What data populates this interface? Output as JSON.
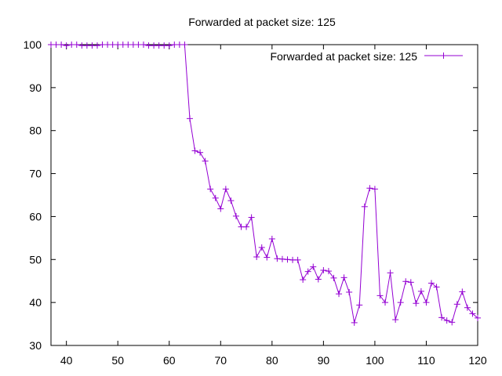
{
  "chart_data": {
    "type": "line",
    "title": "Forwarded at packet size: 125",
    "xlabel": "",
    "ylabel": "",
    "xlim": [
      37,
      120
    ],
    "ylim": [
      30,
      100
    ],
    "xticks": [
      40,
      50,
      60,
      70,
      80,
      90,
      100,
      110,
      120
    ],
    "yticks": [
      30,
      40,
      50,
      60,
      70,
      80,
      90,
      100
    ],
    "grid": false,
    "legend_position": "top-right",
    "series": [
      {
        "name": "Forwarded at packet size: 125",
        "color": "#9400d3",
        "marker": "plus",
        "x": [
          37,
          38,
          39,
          40,
          41,
          42,
          43,
          44,
          45,
          46,
          47,
          48,
          49,
          50,
          51,
          52,
          53,
          54,
          55,
          56,
          57,
          58,
          59,
          60,
          61,
          62,
          63,
          64,
          65,
          66,
          67,
          68,
          69,
          70,
          71,
          72,
          73,
          74,
          75,
          76,
          77,
          78,
          79,
          80,
          81,
          82,
          83,
          84,
          85,
          86,
          87,
          88,
          89,
          90,
          91,
          92,
          93,
          94,
          95,
          96,
          97,
          98,
          99,
          100,
          101,
          102,
          103,
          104,
          105,
          106,
          107,
          108,
          109,
          110,
          111,
          112,
          113,
          114,
          115,
          116,
          117,
          118,
          119,
          120
        ],
        "y": [
          100,
          100,
          100,
          99.8,
          100,
          100,
          99.8,
          99.8,
          99.8,
          99.8,
          100,
          100,
          100,
          100,
          100,
          100,
          100,
          100,
          100,
          99.8,
          99.8,
          99.8,
          99.8,
          99.8,
          100,
          100,
          100,
          82.8,
          75.3,
          74.9,
          72.9,
          66.4,
          64.3,
          61.8,
          66.4,
          63.7,
          60.1,
          57.6,
          57.6,
          59.8,
          50.6,
          52.8,
          50.5,
          54.8,
          50.2,
          50.1,
          50.0,
          49.9,
          49.9,
          45.3,
          47.2,
          48.3,
          45.4,
          47.5,
          47.3,
          45.7,
          42.0,
          45.8,
          42.4,
          35.3,
          39.4,
          62.3,
          66.6,
          66.4,
          41.6,
          40.0,
          46.9,
          36.0,
          40.0,
          44.9,
          44.7,
          39.8,
          42.6,
          40.0,
          44.5,
          43.6,
          36.5,
          35.8,
          35.4,
          39.6,
          42.5,
          38.8,
          37.4,
          36.4
        ]
      }
    ]
  }
}
